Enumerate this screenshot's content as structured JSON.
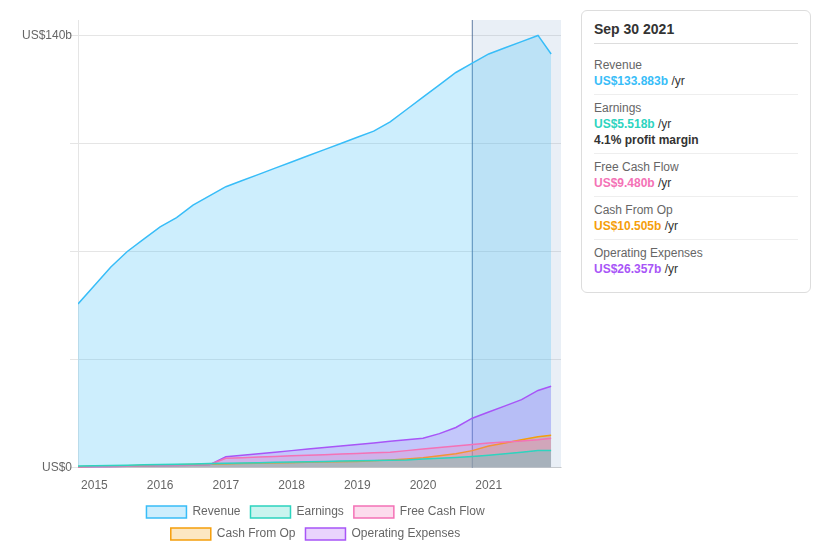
{
  "chart_data": {
    "type": "area",
    "title": "Sep 30 2021",
    "x": [
      2014.75,
      2015.0,
      2015.25,
      2015.5,
      2015.75,
      2016.0,
      2016.25,
      2016.5,
      2016.75,
      2017.0,
      2017.25,
      2017.5,
      2017.75,
      2018.0,
      2018.25,
      2018.5,
      2018.75,
      2019.0,
      2019.25,
      2019.5,
      2019.75,
      2020.0,
      2020.25,
      2020.5,
      2020.75,
      2021.0,
      2021.25,
      2021.5,
      2021.75,
      2021.95
    ],
    "series": [
      {
        "name": "Revenue",
        "color": "#38bdf8",
        "values": [
          53,
          59,
          65,
          70,
          74,
          78,
          81,
          85,
          88,
          91,
          93,
          95,
          97,
          99,
          101,
          103,
          105,
          107,
          109,
          112,
          116,
          120,
          124,
          128,
          131,
          134,
          136,
          138,
          140,
          134
        ]
      },
      {
        "name": "Earnings",
        "color": "#2dd4bf",
        "values": [
          0.5,
          0.6,
          0.7,
          0.8,
          0.9,
          1.0,
          1.1,
          1.2,
          1.3,
          1.4,
          1.5,
          1.6,
          1.7,
          1.8,
          1.9,
          2.0,
          2.1,
          2.2,
          2.3,
          2.4,
          2.5,
          2.8,
          3.0,
          3.3,
          3.6,
          4.0,
          4.5,
          5.0,
          5.5,
          5.518
        ]
      },
      {
        "name": "Free Cash Flow",
        "color": "#f472b6",
        "values": [
          0.2,
          0.3,
          0.3,
          0.4,
          0.5,
          0.6,
          0.7,
          0.8,
          0.9,
          3.0,
          3.2,
          3.4,
          3.6,
          3.8,
          4.0,
          4.2,
          4.4,
          4.6,
          4.8,
          5.0,
          5.5,
          6.0,
          6.5,
          7.0,
          7.5,
          8.0,
          8.3,
          8.6,
          9.0,
          9.48
        ]
      },
      {
        "name": "Cash From Op",
        "color": "#f59e0b",
        "values": [
          0.3,
          0.4,
          0.5,
          0.6,
          0.7,
          0.8,
          0.9,
          1.0,
          1.1,
          1.2,
          1.3,
          1.4,
          1.5,
          1.6,
          1.7,
          1.8,
          1.9,
          2.0,
          2.2,
          2.5,
          2.8,
          3.2,
          3.8,
          4.5,
          5.5,
          7.0,
          8.0,
          9.0,
          10.0,
          10.505
        ]
      },
      {
        "name": "Operating Expenses",
        "color": "#a855f7",
        "values": [
          0.1,
          0.2,
          0.3,
          0.4,
          0.5,
          0.6,
          0.7,
          0.8,
          0.9,
          3.5,
          4.0,
          4.5,
          5.0,
          5.5,
          6.0,
          6.5,
          7.0,
          7.5,
          8.0,
          8.5,
          9.0,
          9.5,
          11.0,
          13.0,
          16.0,
          18.0,
          20.0,
          22.0,
          25.0,
          26.357
        ]
      }
    ],
    "xlim": [
      2014.75,
      2022.1
    ],
    "xticks": [
      2015,
      2016,
      2017,
      2018,
      2019,
      2020,
      2021
    ],
    "ylim": [
      0,
      145
    ],
    "yticks": [
      0,
      35,
      70,
      105,
      140
    ],
    "grid": true,
    "tick_labels": "x",
    "legend": "bottom",
    "stacked": false,
    "highlight_from": 2020.75,
    "annotations": {
      "y_labels": [
        {
          "text": "US$140b",
          "y": 140
        },
        {
          "text": "US$0",
          "y": 0
        }
      ],
      "info_box": [
        {
          "label": "Revenue",
          "value": "US$133.883b",
          "unit": "/yr",
          "color": "#38bdf8"
        },
        {
          "label": "Earnings",
          "value": "US$5.518b",
          "unit": "/yr",
          "color": "#2dd4bf",
          "note": "4.1% profit margin"
        },
        {
          "label": "Free Cash Flow",
          "value": "US$9.480b",
          "unit": "/yr",
          "color": "#f472b6"
        },
        {
          "label": "Cash From Op",
          "value": "US$10.505b",
          "unit": "/yr",
          "color": "#f59e0b"
        },
        {
          "label": "Operating Expenses",
          "value": "US$26.357b",
          "unit": "/yr",
          "color": "#a855f7"
        }
      ]
    }
  }
}
